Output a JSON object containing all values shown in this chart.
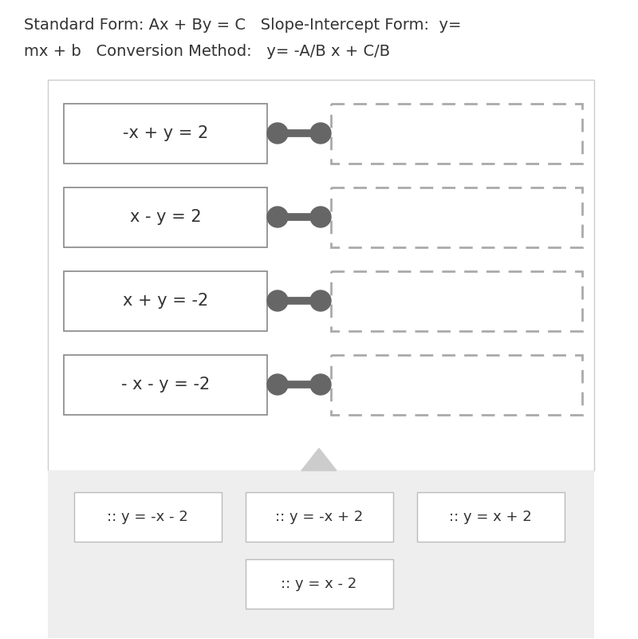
{
  "bg_color": "#ffffff",
  "panel_bg": "#eeeeee",
  "left_boxes": [
    "-x + y = 2",
    "x - y = 2",
    "x + y = -2",
    "- x - y = -2"
  ],
  "bottom_row1": [
    ":: y = -x - 2",
    ":: y = -x + 2",
    ":: y = x + 2"
  ],
  "bottom_row2": ":: y = x - 2",
  "connector_color": "#666666",
  "box_edge_color": "#888888",
  "dashed_box_color": "#aaaaaa",
  "text_color": "#333333",
  "white_border_color": "#cccccc",
  "font_size": 15,
  "title_font_size": 14,
  "title_line1": "Standard Form: Ax + By = C   Slope-Intercept Form:  y=",
  "title_line2": "mx + b   Conversion Method:   y= -A/B x + C/B"
}
